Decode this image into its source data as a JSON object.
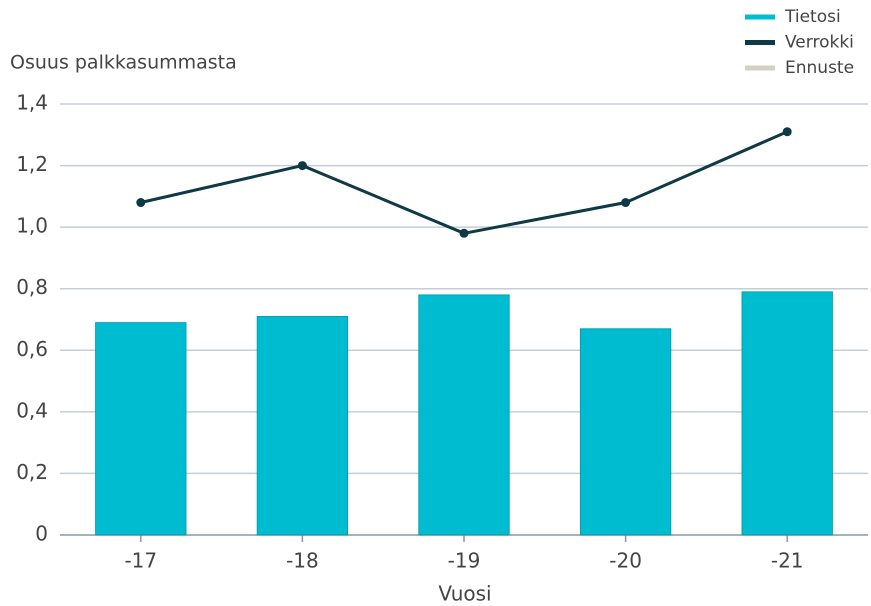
{
  "chart_data": {
    "type": "bar_line",
    "y_axis_label": "Osuus palkkasummasta",
    "x_axis_label": "Vuosi",
    "categories": [
      "-17",
      "-18",
      "-19",
      "-20",
      "-21"
    ],
    "series": [
      {
        "name": "Tietosi",
        "type": "bar",
        "color": "#00bcd0",
        "values": [
          0.69,
          0.71,
          0.78,
          0.67,
          0.79
        ]
      },
      {
        "name": "Verrokki",
        "type": "line",
        "color": "#0f3a45",
        "values": [
          1.08,
          1.2,
          0.98,
          1.08,
          1.31
        ]
      },
      {
        "name": "Ennuste",
        "type": "line",
        "color": "#d6d0c4",
        "values": [
          null,
          null,
          null,
          null,
          null
        ]
      }
    ],
    "ylim": [
      0,
      1.4
    ],
    "yticks": [
      0,
      {
        "value": 0.2,
        "label": "0,2"
      },
      {
        "value": 0.4,
        "label": "0,4"
      },
      {
        "value": 0.6,
        "label": "0,6"
      },
      {
        "value": 0.8,
        "label": "0,8"
      },
      {
        "value": 1.0,
        "label": "1,0"
      },
      {
        "value": 1.2,
        "label": "1,2"
      },
      {
        "value": 1.4,
        "label": "1,4"
      }
    ],
    "grid": true,
    "legend": "top-right"
  }
}
